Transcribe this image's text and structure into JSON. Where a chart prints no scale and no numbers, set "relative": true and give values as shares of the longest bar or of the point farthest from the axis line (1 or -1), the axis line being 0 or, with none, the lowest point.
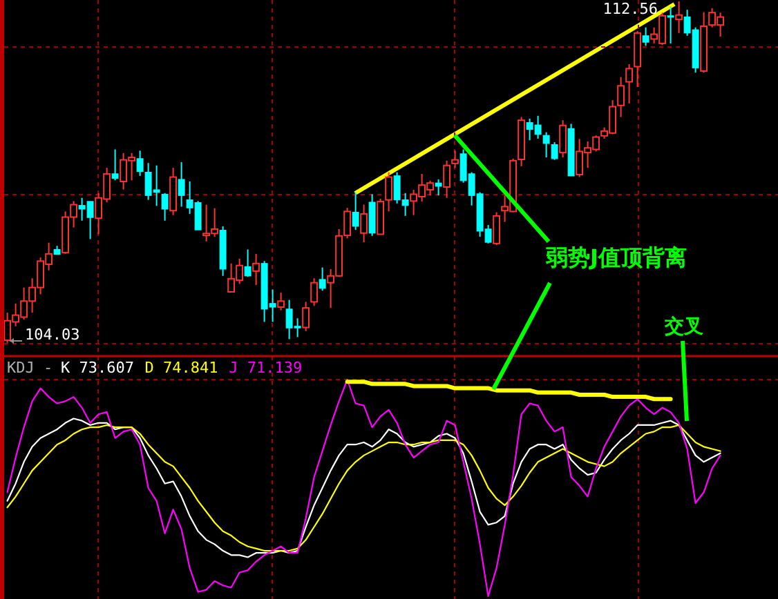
{
  "chart_data": [
    {
      "type": "candlestick",
      "categories": [
        null,
        null,
        null,
        null,
        null,
        null,
        null,
        null,
        null,
        null,
        null,
        null,
        null,
        null,
        null,
        null,
        null,
        null,
        null,
        null,
        null,
        null,
        null,
        null,
        null,
        null,
        null,
        null,
        null,
        null,
        null,
        null,
        null,
        null,
        null,
        null,
        null,
        null,
        null,
        null,
        null,
        null,
        null,
        null,
        null,
        null,
        null,
        null,
        null,
        null,
        null,
        null,
        null,
        null,
        null,
        null,
        null,
        null,
        null,
        null,
        null,
        null,
        null,
        null,
        null,
        null,
        null,
        null,
        null,
        null,
        null,
        null,
        null,
        null,
        null,
        null,
        null,
        null,
        null,
        null,
        null,
        null,
        null,
        null,
        null,
        null,
        null
      ],
      "ohlc": [
        [
          104.09,
          104.78,
          104.03,
          104.58
        ],
        [
          104.55,
          105.01,
          104.44,
          104.72
        ],
        [
          104.67,
          105.41,
          104.61,
          105.07
        ],
        [
          105.07,
          105.64,
          104.78,
          105.41
        ],
        [
          105.41,
          106.16,
          105.24,
          106.07
        ],
        [
          105.99,
          106.53,
          105.84,
          106.25
        ],
        [
          106.36,
          106.45,
          106.24,
          106.24
        ],
        [
          106.28,
          107.31,
          106.25,
          107.17
        ],
        [
          107.17,
          107.57,
          106.91,
          107.48
        ],
        [
          107.46,
          107.65,
          107.08,
          107.37
        ],
        [
          107.56,
          107.56,
          106.62,
          107.16
        ],
        [
          107.14,
          107.77,
          106.74,
          107.65
        ],
        [
          107.62,
          108.4,
          107.54,
          108.25
        ],
        [
          108.25,
          108.86,
          108.09,
          108.14
        ],
        [
          108.06,
          108.77,
          107.86,
          108.6
        ],
        [
          108.58,
          108.77,
          108.09,
          108.66
        ],
        [
          108.63,
          108.83,
          108.2,
          108.31
        ],
        [
          108.29,
          108.52,
          107.6,
          107.71
        ],
        [
          107.85,
          108.46,
          107.45,
          107.79
        ],
        [
          107.74,
          107.77,
          107.08,
          107.37
        ],
        [
          107.33,
          108.4,
          107.22,
          108.17
        ],
        [
          108.11,
          108.54,
          107.43,
          107.71
        ],
        [
          107.6,
          108.06,
          107.25,
          107.4
        ],
        [
          107.53,
          107.57,
          106.85,
          106.85
        ],
        [
          106.71,
          107.48,
          106.56,
          106.76
        ],
        [
          106.76,
          107.39,
          106.68,
          106.87
        ],
        [
          106.84,
          106.94,
          105.7,
          105.87
        ],
        [
          105.3,
          106.01,
          105.29,
          105.63
        ],
        [
          105.59,
          106.13,
          105.5,
          105.96
        ],
        [
          105.93,
          106.36,
          105.68,
          105.7
        ],
        [
          105.82,
          106.25,
          105.47,
          106.01
        ],
        [
          106.01,
          106.07,
          104.55,
          104.87
        ],
        [
          105.01,
          105.36,
          104.55,
          104.92
        ],
        [
          104.92,
          105.28,
          104.84,
          105.07
        ],
        [
          104.87,
          105.1,
          104.12,
          104.4
        ],
        [
          104.44,
          104.64,
          104.17,
          104.4
        ],
        [
          104.41,
          105.05,
          104.32,
          104.9
        ],
        [
          105.05,
          105.64,
          104.95,
          105.53
        ],
        [
          105.61,
          105.91,
          105.33,
          105.39
        ],
        [
          105.53,
          105.87,
          104.9,
          105.7
        ],
        [
          105.7,
          106.87,
          105.68,
          106.7
        ],
        [
          106.71,
          107.4,
          106.64,
          107.31
        ],
        [
          107.29,
          107.79,
          106.85,
          106.94
        ],
        [
          106.77,
          107.48,
          106.54,
          107.25
        ],
        [
          107.54,
          107.74,
          106.7,
          106.77
        ],
        [
          106.74,
          107.63,
          106.74,
          107.56
        ],
        [
          107.6,
          108.29,
          107.31,
          108.17
        ],
        [
          108.2,
          108.29,
          107.51,
          107.6
        ],
        [
          107.6,
          107.77,
          107.2,
          107.46
        ],
        [
          107.57,
          107.85,
          107.22,
          107.74
        ],
        [
          107.68,
          108.25,
          107.56,
          107.97
        ],
        [
          107.85,
          108.08,
          107.71,
          108.02
        ],
        [
          108.02,
          108.11,
          107.71,
          107.94
        ],
        [
          107.92,
          108.58,
          107.65,
          108.46
        ],
        [
          108.51,
          108.83,
          108.4,
          108.6
        ],
        [
          108.75,
          108.86,
          108.03,
          108.08
        ],
        [
          108.25,
          108.29,
          107.46,
          107.71
        ],
        [
          107.75,
          107.79,
          106.68,
          106.82
        ],
        [
          106.87,
          106.97,
          106.51,
          106.54
        ],
        [
          106.51,
          107.29,
          106.47,
          107.2
        ],
        [
          107.33,
          107.71,
          107.05,
          107.43
        ],
        [
          107.31,
          108.63,
          107.29,
          108.58
        ],
        [
          108.61,
          109.67,
          108.44,
          109.59
        ],
        [
          109.53,
          109.63,
          109.09,
          109.36
        ],
        [
          109.47,
          109.7,
          109.13,
          109.24
        ],
        [
          109.21,
          109.29,
          108.66,
          109.01
        ],
        [
          108.98,
          109.04,
          108.6,
          108.63
        ],
        [
          108.78,
          109.59,
          108.66,
          109.46
        ],
        [
          109.38,
          109.5,
          108.2,
          108.2
        ],
        [
          108.23,
          109.12,
          108.17,
          108.81
        ],
        [
          108.78,
          109.06,
          108.4,
          108.9
        ],
        [
          108.86,
          109.21,
          108.81,
          109.17
        ],
        [
          109.2,
          109.41,
          109.13,
          109.32
        ],
        [
          109.27,
          110.09,
          109.24,
          109.93
        ],
        [
          109.96,
          110.67,
          109.67,
          110.45
        ],
        [
          110.55,
          110.99,
          110.01,
          110.88
        ],
        [
          110.93,
          111.82,
          110.42,
          111.77
        ],
        [
          111.7,
          111.91,
          111.45,
          111.54
        ],
        [
          111.62,
          111.91,
          111.51,
          111.74
        ],
        [
          111.51,
          112.28,
          111.47,
          112.2
        ],
        [
          112.2,
          112.43,
          111.51,
          112.17
        ],
        [
          112.11,
          112.56,
          111.77,
          112.22
        ],
        [
          112.17,
          112.35,
          111.7,
          111.77
        ],
        [
          111.85,
          111.91,
          110.78,
          110.9
        ],
        [
          110.82,
          112.29,
          110.78,
          111.94
        ],
        [
          111.97,
          112.39,
          111.91,
          112.28
        ],
        [
          111.97,
          112.28,
          111.68,
          112.17
        ]
      ],
      "colors": [
        "#ff3232",
        "#ff3232",
        "#ff3232",
        "#ff3232",
        "#ff3232",
        "#ff3232",
        "#00ffff",
        "#ff3232",
        "#ff3232",
        "#00ffff",
        "#00ffff",
        "#ff3232",
        "#ff3232",
        "#00ffff",
        "#ff3232",
        "#ff3232",
        "#00ffff",
        "#00ffff",
        "#00ffff",
        "#00ffff",
        "#ff3232",
        "#00ffff",
        "#00ffff",
        "#00ffff",
        "#ff3232",
        "#ff3232",
        "#00ffff",
        "#ff3232",
        "#ff3232",
        "#00ffff",
        "#ff3232",
        "#00ffff",
        "#00ffff",
        "#ff3232",
        "#00ffff",
        "#00ffff",
        "#ff3232",
        "#ff3232",
        "#00ffff",
        "#ff3232",
        "#ff3232",
        "#ff3232",
        "#00ffff",
        "#ff3232",
        "#00ffff",
        "#ff3232",
        "#ff3232",
        "#00ffff",
        "#00ffff",
        "#ff3232",
        "#ff3232",
        "#ff3232",
        "#00ffff",
        "#ff3232",
        "#ff3232",
        "#00ffff",
        "#00ffff",
        "#00ffff",
        "#00ffff",
        "#ff3232",
        "#ff3232",
        "#ff3232",
        "#ff3232",
        "#00ffff",
        "#00ffff",
        "#00ffff",
        "#00ffff",
        "#ff3232",
        "#00ffff",
        "#ff3232",
        "#ff3232",
        "#ff3232",
        "#ff3232",
        "#ff3232",
        "#ff3232",
        "#ff3232",
        "#ff3232",
        "#00ffff",
        "#ff3232",
        "#ff3232",
        "#00ffff",
        "#ff3232",
        "#00ffff",
        "#00ffff",
        "#ff3232",
        "#ff3232",
        "#ff3232"
      ],
      "grid": true,
      "annotations": [
        "104.03",
        "112.56",
        "弱势J值顶背离",
        "交叉"
      ]
    },
    {
      "type": "line",
      "relative": true,
      "categories": [
        null,
        null,
        null,
        null,
        null,
        null,
        null,
        null,
        null,
        null,
        null,
        null,
        null,
        null,
        null,
        null,
        null,
        null,
        null,
        null,
        null,
        null,
        null,
        null,
        null,
        null,
        null,
        null,
        null,
        null,
        null,
        null,
        null,
        null,
        null,
        null,
        null,
        null,
        null,
        null,
        null,
        null,
        null,
        null,
        null,
        null,
        null,
        null,
        null,
        null,
        null,
        null,
        null,
        null,
        null,
        null,
        null,
        null,
        null,
        null,
        null,
        null,
        null,
        null,
        null,
        null,
        null,
        null,
        null,
        null,
        null,
        null,
        null,
        null,
        null,
        null,
        null,
        null,
        null,
        null,
        null,
        null,
        null,
        null,
        null,
        null,
        null
      ],
      "grid": true,
      "annotations": [
        "KDJ -"
      ],
      "series": [
        {
          "name": "K 73.607",
          "color": "#ffffff",
          "values": [
            0.44,
            0.52,
            0.62,
            0.69,
            0.73,
            0.75,
            0.77,
            0.8,
            0.82,
            0.81,
            0.79,
            0.8,
            0.8,
            0.77,
            0.78,
            0.78,
            0.73,
            0.65,
            0.59,
            0.52,
            0.53,
            0.46,
            0.37,
            0.3,
            0.26,
            0.24,
            0.21,
            0.19,
            0.19,
            0.18,
            0.2,
            0.2,
            0.2,
            0.21,
            0.2,
            0.21,
            0.32,
            0.42,
            0.5,
            0.58,
            0.65,
            0.7,
            0.7,
            0.71,
            0.69,
            0.72,
            0.77,
            0.75,
            0.71,
            0.69,
            0.7,
            0.71,
            0.74,
            0.75,
            0.73,
            0.66,
            0.53,
            0.39,
            0.33,
            0.34,
            0.37,
            0.52,
            0.62,
            0.68,
            0.7,
            0.7,
            0.68,
            0.7,
            0.63,
            0.59,
            0.56,
            0.57,
            0.63,
            0.68,
            0.72,
            0.75,
            0.79,
            0.79,
            0.79,
            0.8,
            0.81,
            0.79,
            0.72,
            0.65,
            0.62,
            0.64,
            0.66
          ]
        },
        {
          "name": "D 74.841",
          "color": "#ffff00",
          "values": [
            0.41,
            0.46,
            0.52,
            0.58,
            0.62,
            0.66,
            0.7,
            0.72,
            0.75,
            0.77,
            0.78,
            0.78,
            0.79,
            0.78,
            0.78,
            0.78,
            0.75,
            0.7,
            0.66,
            0.62,
            0.6,
            0.55,
            0.5,
            0.44,
            0.39,
            0.34,
            0.3,
            0.28,
            0.25,
            0.23,
            0.22,
            0.21,
            0.21,
            0.21,
            0.21,
            0.22,
            0.26,
            0.32,
            0.38,
            0.45,
            0.52,
            0.58,
            0.62,
            0.65,
            0.67,
            0.69,
            0.71,
            0.71,
            0.7,
            0.7,
            0.71,
            0.71,
            0.72,
            0.72,
            0.72,
            0.7,
            0.65,
            0.58,
            0.5,
            0.45,
            0.42,
            0.46,
            0.51,
            0.57,
            0.62,
            0.64,
            0.66,
            0.68,
            0.66,
            0.64,
            0.62,
            0.61,
            0.6,
            0.62,
            0.66,
            0.69,
            0.72,
            0.75,
            0.76,
            0.78,
            0.78,
            0.79,
            0.75,
            0.71,
            0.69,
            0.68,
            0.67
          ]
        },
        {
          "name": "J 71.139",
          "color": "#ff00ff",
          "values": [
            0.48,
            0.64,
            0.78,
            0.9,
            0.96,
            0.92,
            0.89,
            0.9,
            0.92,
            0.87,
            0.8,
            0.84,
            0.85,
            0.73,
            0.76,
            0.77,
            0.7,
            0.5,
            0.44,
            0.29,
            0.4,
            0.31,
            0.13,
            0.02,
            0.03,
            0.07,
            0.05,
            0.04,
            0.11,
            0.12,
            0.16,
            0.19,
            0.21,
            0.23,
            0.2,
            0.2,
            0.36,
            0.55,
            0.67,
            0.79,
            0.9,
            1.0,
            0.89,
            0.88,
            0.78,
            0.83,
            0.86,
            0.8,
            0.7,
            0.64,
            0.67,
            0.7,
            0.71,
            0.81,
            0.79,
            0.62,
            0.45,
            0.24,
            0.0,
            0.13,
            0.33,
            0.56,
            0.84,
            0.89,
            0.88,
            0.81,
            0.76,
            0.78,
            0.55,
            0.51,
            0.46,
            0.59,
            0.69,
            0.76,
            0.83,
            0.88,
            0.91,
            0.87,
            0.84,
            0.87,
            0.85,
            0.8,
            0.68,
            0.43,
            0.48,
            0.59,
            0.65
          ]
        },
        {
          "color": "#ffff00",
          "values": [
            null,
            null,
            null,
            null,
            null,
            null,
            null,
            null,
            null,
            null,
            null,
            null,
            null,
            null,
            null,
            null,
            null,
            null,
            null,
            null,
            null,
            null,
            null,
            null,
            null,
            null,
            null,
            null,
            null,
            null,
            null,
            null,
            null,
            null,
            null,
            null,
            null,
            null,
            null,
            null,
            null,
            0.99,
            0.99,
            0.99,
            0.98,
            0.98,
            0.98,
            0.98,
            0.98,
            0.97,
            0.97,
            0.97,
            0.97,
            0.97,
            0.96,
            0.96,
            0.96,
            0.96,
            0.96,
            0.95,
            0.95,
            0.95,
            0.95,
            0.95,
            0.94,
            0.94,
            0.94,
            0.94,
            0.94,
            0.93,
            0.93,
            0.93,
            0.93,
            0.92,
            0.92,
            0.92,
            0.92,
            0.92,
            0.91,
            0.91,
            0.91,
            null,
            null,
            null,
            null,
            null,
            null
          ]
        }
      ]
    }
  ]
}
